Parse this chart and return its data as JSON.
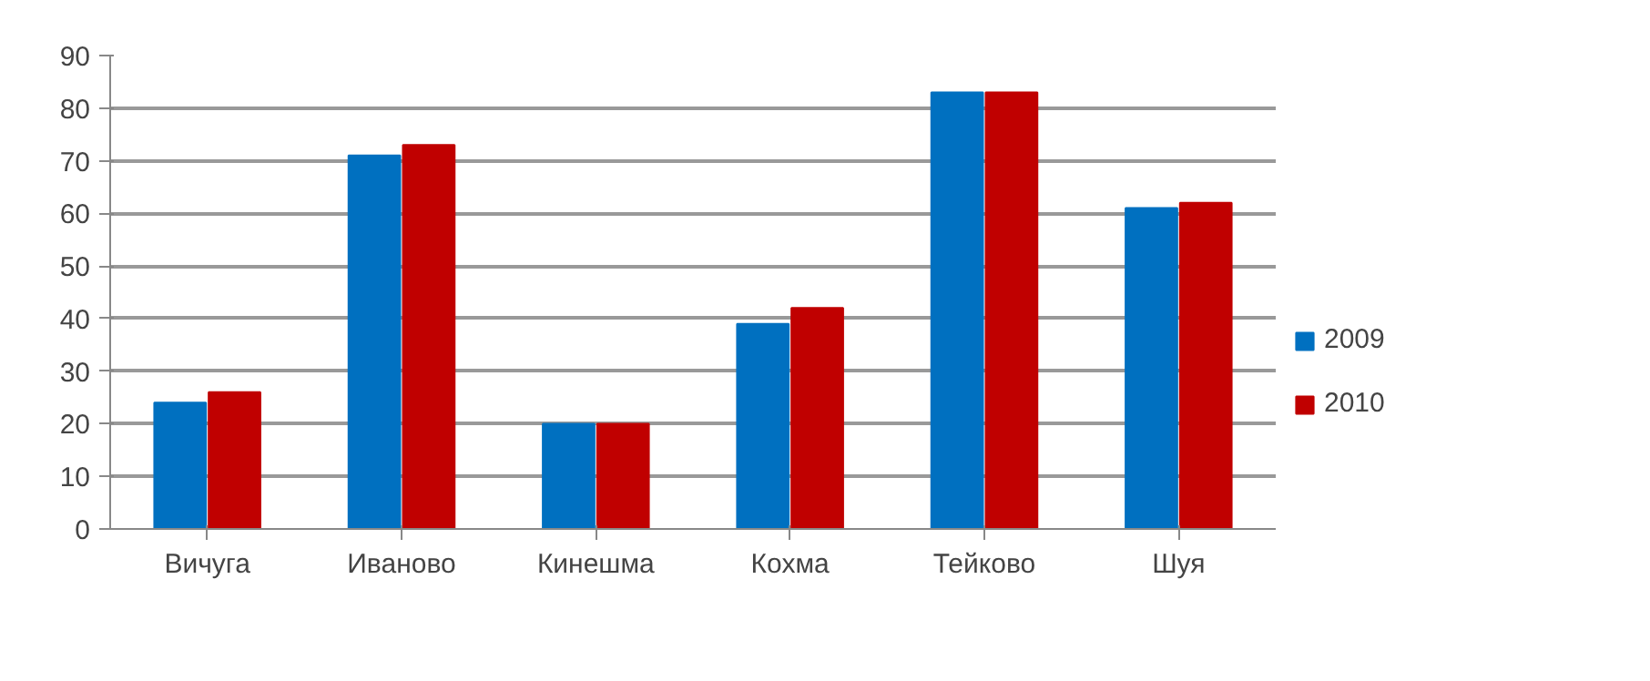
{
  "chart_data": {
    "type": "bar",
    "categories": [
      "Вичуга",
      "Иваново",
      "Кинешма",
      "Кохма",
      "Тейково",
      "Шуя"
    ],
    "series": [
      {
        "name": "2009",
        "color": "#0070c0",
        "values": [
          24,
          71,
          20,
          39,
          83,
          61
        ]
      },
      {
        "name": "2010",
        "color": "#c00000",
        "values": [
          26,
          73,
          20,
          42,
          83,
          62
        ]
      }
    ],
    "ylim": [
      0,
      90
    ],
    "yticks": [
      0,
      10,
      20,
      30,
      40,
      50,
      60,
      70,
      80,
      90
    ],
    "grid": "y",
    "legend": "right"
  }
}
